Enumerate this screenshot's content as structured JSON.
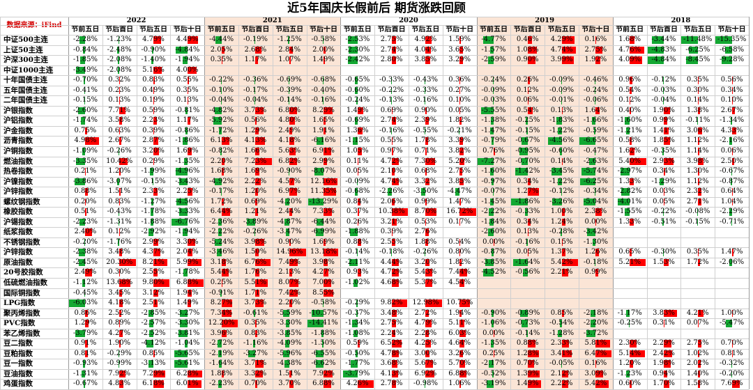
{
  "chart_data": {
    "type": "table",
    "title": "近5年国庆长假前后  期货涨跌回顾",
    "source": "数据来源：iFind",
    "years": [
      "2022",
      "2021",
      "2020",
      "2019",
      "2018"
    ],
    "periods": [
      "节前五日",
      "节后首日",
      "节后五日",
      "节后十日"
    ],
    "colors": {
      "positive": "#ff0000",
      "negative": "#13a832",
      "band_a": "#ffffff",
      "band_b": "#fbe5d6"
    },
    "rows": [
      {
        "name": "中证500主连",
        "values": [
          -2.28,
          -1.23,
          4.79,
          4.49,
          -4.44,
          -0.19,
          -1.25,
          -0.58,
          -2.53,
          2.75,
          4.92,
          1.59,
          -4.77,
          0.46,
          4.29,
          0.16,
          1.68,
          -3.44,
          -11.48,
          -15.35
        ]
      },
      {
        "name": "上证50主连",
        "values": [
          -0.84,
          -2.48,
          -0.9,
          -4.84,
          2.05,
          2.68,
          2.84,
          2.0,
          -2.3,
          2.74,
          4.04,
          3.65,
          -1.57,
          1.08,
          4.74,
          2.75,
          4.76,
          -4.83,
          -6.25,
          -6.58
        ]
      },
      {
        "name": "沪深300主连",
        "values": [
          -1.85,
          -2.08,
          -1.4,
          -1.94,
          0.35,
          1.17,
          1.07,
          1.49,
          -2.42,
          2.8,
          3.85,
          3.29,
          -2.59,
          0.9,
          3.99,
          1.92,
          4.09,
          -4.84,
          -8.45,
          -9.28
        ]
      },
      {
        "name": "中证1000主连",
        "values": [
          -3.49,
          -2.08,
          5.16,
          4.0,
          null,
          null,
          null,
          null,
          null,
          null,
          null,
          null,
          null,
          null,
          null,
          null,
          null,
          null,
          null,
          null
        ]
      },
      {
        "name": "十年国债主连",
        "values": [
          -0.7,
          0.32,
          0.83,
          0.55,
          -0.22,
          -0.36,
          -0.69,
          -0.68,
          -0.65,
          -0.33,
          -0.43,
          0.36,
          -0.24,
          0.26,
          -0.09,
          -0.46,
          0.96,
          -0.12,
          0.35,
          0.56
        ]
      },
      {
        "name": "五年国债主连",
        "values": [
          -0.41,
          0.23,
          0.49,
          0.35,
          -0.1,
          -0.17,
          -0.39,
          -0.4,
          -0.6,
          -0.22,
          -0.33,
          0.27,
          -0.09,
          0.12,
          -0.09,
          -0.24,
          0.54,
          -0.03,
          0.3,
          0.34
        ]
      },
      {
        "name": "二年国债主连",
        "values": [
          -0.15,
          0.13,
          0.19,
          0.13,
          -0.04,
          -0.04,
          -0.14,
          -0.16,
          -0.24,
          -0.13,
          -0.16,
          0.1,
          -0.03,
          0.06,
          -0.01,
          -0.06,
          0.12,
          -0.04,
          0.14,
          0.1
        ]
      },
      {
        "name": "沪银指数",
        "values": [
          -2.6,
          7.71,
          0.59,
          -0.81,
          -4.82,
          3.73,
          6.8,
          8.29,
          1.49,
          0.69,
          0.9,
          0.05,
          -5.55,
          0.54,
          0.13,
          1.64,
          0.4,
          1.9,
          1.38,
          2.67
        ]
      },
      {
        "name": "沪铝指数",
        "values": [
          -1.74,
          3.58,
          2.23,
          1.17,
          -5.92,
          0.56,
          4.8,
          1.65,
          -0.69,
          2.74,
          2.39,
          1.82,
          -1.38,
          -0.25,
          -1.83,
          -1.66,
          -1.6,
          0.99,
          -0.11,
          -1.34
        ]
      },
      {
        "name": "沪金指数",
        "values": [
          0.75,
          0.63,
          0.39,
          -0.86,
          -1.72,
          1.29,
          2.49,
          1.91,
          1.36,
          -0.16,
          -0.55,
          -0.21,
          -1.47,
          -0.15,
          -1.22,
          -0.59,
          -1.21,
          1.41,
          3.06,
          4.33
        ]
      },
      {
        "name": "沥青指数",
        "values": [
          4.98,
          2.67,
          2.87,
          -1.86,
          6.13,
          4.13,
          4.18,
          -6.16,
          -1.15,
          0.55,
          1.78,
          3.39,
          -0.79,
          -0.67,
          -4.56,
          -6.65,
          0.58,
          1.85,
          1.12,
          -2.16
        ]
      },
      {
        "name": "沪铜指数",
        "values": [
          -1.09,
          -0.26,
          3.2,
          1.69,
          -0.82,
          1.66,
          5.63,
          6.91,
          1.05,
          0.97,
          0.71,
          3.82,
          0.76,
          -0.95,
          -0.6,
          -0.47,
          1.62,
          -0.35,
          1.14,
          0.06
        ]
      },
      {
        "name": "燃油指数",
        "values": [
          -3.35,
          10.42,
          0.29,
          -1.35,
          2.2,
          7.23,
          6.82,
          2.99,
          0.11,
          4.72,
          7.3,
          5.2,
          -7.27,
          -0.7,
          0.14,
          -2.63,
          5.4,
          2.93,
          3.98,
          2.5
        ]
      },
      {
        "name": "热卷指数",
        "values": [
          0.21,
          1.2,
          -1.99,
          -4.96,
          1.68,
          1.69,
          -0.9,
          -8.07,
          0.05,
          2.1,
          0.68,
          2.75,
          -1.6,
          -1.42,
          -3.45,
          -5.74,
          -2.97,
          0.34,
          1.3,
          -0.67
        ]
      },
      {
        "name": "沪镍指数",
        "values": [
          -3.86,
          -3.07,
          -0.15,
          -3.43,
          -4.92,
          2.22,
          4.57,
          12.16,
          -0.09,
          4.74,
          3.32,
          3.85,
          -0.97,
          0.34,
          -1.22,
          -6.25,
          1.33,
          -1.29,
          1.12,
          -0.87
        ]
      },
      {
        "name": "沪锌指数",
        "values": [
          0.88,
          1.51,
          2.33,
          2.25,
          -0.17,
          1.2,
          6.97,
          11.35,
          -0.68,
          -2.26,
          -3.5,
          -4.47,
          -0.07,
          1.27,
          -0.12,
          -0.34,
          -2.82,
          0.03,
          2.32,
          0.64
        ]
      },
      {
        "name": "螺纹钢指数",
        "values": [
          0.2,
          0.83,
          -1.27,
          -4.56,
          1.72,
          0.69,
          -4.2,
          -13.29,
          0.84,
          2.06,
          0.99,
          1.47,
          -1.45,
          -1.86,
          -3.26,
          -5.04,
          -4.01,
          0.05,
          2.71,
          1.04
        ]
      },
      {
        "name": "橡胶指数",
        "values": [
          0.51,
          -0.43,
          -1.78,
          -3.33,
          6.44,
          1.21,
          2.44,
          7.33,
          0.37,
          10.38,
          8.7,
          16.72,
          -2.22,
          -0.33,
          1.0,
          2.38,
          -1.55,
          -0.22,
          -0.08,
          -2.29
        ]
      },
      {
        "name": "沪锡指数",
        "values": [
          -2.23,
          -1.31,
          -1.88,
          -6.76,
          -2.36,
          -3.89,
          -4.87,
          -6.44,
          0.26,
          3.21,
          0.53,
          0.17,
          -1.84,
          0.34,
          1.24,
          0.0,
          1.33,
          -0.51,
          -0.15,
          -0.71
        ]
      },
      {
        "name": "纸浆指数",
        "values": [
          2.4,
          0.12,
          -2.92,
          -1.94,
          -2.22,
          -0.26,
          -3.47,
          -6.99,
          -1.88,
          0.39,
          2.76,
          null,
          -2.6,
          0.13,
          -0.28,
          -3.42,
          null,
          null,
          null,
          null
        ]
      },
      {
        "name": "不锈钢指数",
        "values": [
          -0.2,
          -1.76,
          2.99,
          3.3,
          -5.24,
          3.98,
          0.9,
          1.69,
          0.88,
          2.55,
          1.88,
          0.54,
          0.0,
          -0.16,
          0.15,
          -1.3,
          null,
          null,
          null,
          null
        ]
      },
      {
        "name": "沪锌指数",
        "values": [
          -2.38,
          3.48,
          4.37,
          2.04,
          -3.46,
          1.5,
          14.96,
          13.18,
          -0.14,
          -0.18,
          -0.26,
          0.8,
          -0.87,
          0.05,
          1.37,
          1.26,
          0.65,
          -0.3,
          0.35,
          1.47
        ]
      },
      {
        "name": "原油指数",
        "values": [
          -2.45,
          20.3,
          8.21,
          5.99,
          3.18,
          6.76,
          7.49,
          3.98,
          -2.11,
          4.44,
          3.2,
          1.82,
          -3.85,
          -1.64,
          5.42,
          -0.18,
          5.21,
          1.53,
          1.72,
          -2.06
        ]
      },
      {
        "name": "20号胶指数",
        "values": [
          2.49,
          0.3,
          2.55,
          -1.78,
          5.44,
          1.76,
          2.13,
          4.27,
          0.93,
          4.72,
          5.43,
          7.44,
          -4.52,
          -0.56,
          2.21,
          0.99,
          null,
          null,
          null,
          null
        ]
      },
      {
        "name": "低硫燃油指数",
        "values": [
          -1.12,
          13.68,
          9.8,
          6.88,
          0.25,
          5.51,
          8.07,
          7.0,
          -1.02,
          4.68,
          5.37,
          4.54,
          null,
          null,
          null,
          null,
          null,
          null,
          null,
          null
        ]
      },
      {
        "name": "国际铜指数",
        "values": [
          -0.45,
          3.45,
          3.12,
          1.94,
          -0.91,
          1.71,
          7.42,
          8.55,
          null,
          null,
          null,
          null,
          null,
          null,
          null,
          null,
          null,
          null,
          null,
          null
        ]
      },
      {
        "name": "LPG指数",
        "values": [
          -6.03,
          4.18,
          2.51,
          1.49,
          8.27,
          3.73,
          2.2,
          -0.58,
          -0.29,
          9.82,
          12.98,
          10.75,
          null,
          null,
          null,
          null,
          null,
          null,
          null,
          null
        ]
      },
      {
        "name": "聚丙烯指数",
        "values": [
          0.86,
          2.52,
          -2.85,
          -3.27,
          7.34,
          -0.61,
          -5.59,
          -10.57,
          -0.37,
          3.48,
          2.72,
          1.94,
          -0.9,
          -0.89,
          0.85,
          -2.18,
          -1.17,
          3.83,
          4.21,
          1.0
        ]
      },
      {
        "name": "PVC指数",
        "values": [
          1.29,
          0.89,
          -2.57,
          -3.3,
          12.2,
          0.35,
          -3.3,
          -14.41,
          -1.34,
          2.75,
          4.79,
          5.11,
          -1.06,
          -0.73,
          -0.54,
          -2.2,
          -0.25,
          0.31,
          0.07,
          -5.47
        ]
      },
      {
        "name": "苯乙烯指数",
        "values": [
          -3.79,
          4.27,
          -2.52,
          -3.81,
          3.96,
          0.83,
          -3.85,
          -1.88,
          -1.08,
          2.24,
          2.28,
          6.03,
          0.0,
          -0.14,
          -1.28,
          -3.72,
          null,
          null,
          null,
          null
        ]
      },
      {
        "name": "豆二指数",
        "values": [
          0.91,
          1.9,
          -4.12,
          -1.04,
          -2.72,
          -1.16,
          -4.09,
          -1.5,
          0.59,
          6.52,
          4.25,
          4.64,
          -1.35,
          0.88,
          2.33,
          5.81,
          2.3,
          2.29,
          2.75,
          0.7
        ]
      },
      {
        "name": "豆粕指数",
        "values": [
          0.81,
          -0.29,
          0.85,
          -5.65,
          -2.19,
          -3.27,
          -5.96,
          -6.55,
          -0.5,
          4.78,
          3.0,
          3.26,
          0.25,
          1.28,
          3.41,
          6.47,
          5.14,
          2.42,
          1.02,
          0.81
        ]
      },
      {
        "name": "豆一指数",
        "values": [
          -0.93,
          -0.99,
          -3.13,
          -5.61,
          -1.64,
          3.71,
          -4.38,
          -6.62,
          -1.77,
          3.68,
          5.67,
          5.7,
          -2.17,
          0.7,
          -0.05,
          0.16,
          1.2,
          1.98,
          2.02,
          -0.32
        ]
      },
      {
        "name": "豆油指数",
        "values": [
          -1.31,
          7.92,
          7.29,
          6.28,
          1.88,
          3.32,
          1.51,
          7.92,
          -3.79,
          4.13,
          6.92,
          6.88,
          -0.52,
          1.39,
          2.12,
          3.09,
          -1.23,
          0.94,
          1.4,
          -0.2
        ]
      },
      {
        "name": "鸡蛋指数",
        "values": [
          -0.67,
          4.83,
          6.18,
          6.01,
          -2.23,
          0.7,
          3.7,
          6.88,
          4.26,
          2.78,
          -0.98,
          1.06,
          -3.19,
          1.49,
          2.22,
          5.42,
          0.6,
          1.7,
          1.58,
          7.69
        ]
      }
    ]
  }
}
